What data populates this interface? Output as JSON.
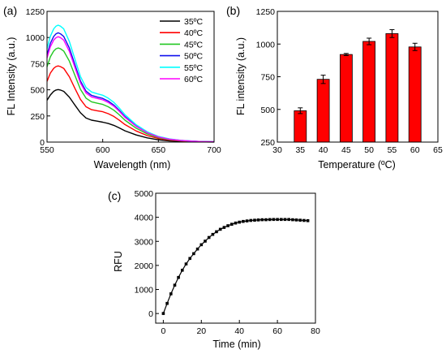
{
  "chart_data": [
    {
      "panel_label": "(a)",
      "type": "line",
      "xlabel": "Wavelength (nm)",
      "ylabel": "FL Intensity (a.u.)",
      "xlim": [
        550,
        700
      ],
      "ylim": [
        0,
        1250
      ],
      "xticks": [
        550,
        600,
        650,
        700
      ],
      "yticks": [
        0,
        250,
        500,
        750,
        1000,
        1250
      ],
      "ytick_labels": [
        "0",
        "250",
        "500",
        "750",
        "1000",
        "1250"
      ],
      "grid": false,
      "legend_position": "top-right",
      "x": [
        550,
        553,
        556,
        558,
        560,
        562,
        565,
        570,
        575,
        580,
        585,
        590,
        595,
        600,
        605,
        610,
        615,
        620,
        630,
        640,
        650,
        660,
        670,
        680,
        690,
        700
      ],
      "series": [
        {
          "name": "35ºC",
          "color": "#000000",
          "values": [
            400,
            450,
            485,
            498,
            502,
            498,
            485,
            430,
            355,
            280,
            230,
            210,
            200,
            190,
            178,
            160,
            135,
            108,
            68,
            40,
            22,
            12,
            7,
            4,
            2,
            1
          ]
        },
        {
          "name": "40ºC",
          "color": "#ff0000",
          "values": [
            580,
            660,
            705,
            722,
            728,
            722,
            705,
            625,
            515,
            408,
            338,
            310,
            300,
            290,
            272,
            245,
            208,
            168,
            106,
            62,
            34,
            19,
            11,
            6,
            3,
            2
          ]
        },
        {
          "name": "45ºC",
          "color": "#22c822",
          "values": [
            720,
            815,
            870,
            892,
            900,
            893,
            870,
            775,
            640,
            505,
            420,
            385,
            372,
            360,
            338,
            305,
            260,
            210,
            133,
            78,
            43,
            24,
            14,
            8,
            4,
            2
          ]
        },
        {
          "name": "50ºC",
          "color": "#1010ee",
          "values": [
            835,
            945,
            1010,
            1035,
            1045,
            1036,
            1010,
            900,
            742,
            585,
            487,
            447,
            432,
            418,
            392,
            354,
            302,
            244,
            155,
            91,
            50,
            28,
            16,
            9,
            5,
            3
          ]
        },
        {
          "name": "55ºC",
          "color": "#00ffff",
          "values": [
            895,
            1012,
            1082,
            1108,
            1118,
            1109,
            1082,
            963,
            795,
            627,
            522,
            479,
            463,
            448,
            420,
            380,
            324,
            262,
            166,
            98,
            54,
            30,
            17,
            10,
            5,
            3
          ]
        },
        {
          "name": "60ºC",
          "color": "#ff00ff",
          "values": [
            805,
            912,
            975,
            998,
            1008,
            999,
            975,
            868,
            716,
            565,
            470,
            432,
            418,
            404,
            379,
            343,
            293,
            237,
            151,
            89,
            49,
            27,
            16,
            9,
            5,
            3
          ]
        }
      ]
    },
    {
      "panel_label": "(b)",
      "type": "bar",
      "xlabel": "Temperature (ºC)",
      "ylabel": "FL intensity (a.u.)",
      "xlim": [
        30,
        65
      ],
      "ylim": [
        250,
        1250
      ],
      "xticks": [
        30,
        35,
        40,
        45,
        50,
        55,
        60,
        65
      ],
      "yticks": [
        250,
        500,
        750,
        1000,
        1250
      ],
      "ytick_labels": [
        "250",
        "500",
        "750",
        "1000",
        "1250"
      ],
      "grid": false,
      "bar_color": "#ff0000",
      "categories": [
        35,
        40,
        45,
        50,
        55,
        60
      ],
      "values": [
        490,
        730,
        920,
        1020,
        1080,
        978
      ],
      "errors": [
        22,
        32,
        8,
        25,
        30,
        28
      ]
    },
    {
      "panel_label": "(c)",
      "type": "line",
      "xlabel": "Time (min)",
      "ylabel": "RFU",
      "xlim": [
        -4,
        80
      ],
      "ylim": [
        -400,
        5000
      ],
      "xticks": [
        0,
        20,
        40,
        60,
        80
      ],
      "yticks": [
        0,
        1000,
        2000,
        3000,
        4000,
        5000
      ],
      "ytick_labels": [
        "0",
        "1000",
        "2000",
        "3000",
        "4000",
        "5000"
      ],
      "grid": false,
      "marker": "square",
      "x": [
        0,
        2,
        4,
        6,
        8,
        10,
        12,
        14,
        16,
        18,
        20,
        22,
        24,
        26,
        28,
        30,
        32,
        34,
        36,
        38,
        40,
        42,
        44,
        46,
        48,
        50,
        52,
        54,
        56,
        58,
        60,
        62,
        64,
        66,
        68,
        70,
        72,
        74,
        76
      ],
      "values": [
        0,
        420,
        820,
        1180,
        1500,
        1800,
        2060,
        2290,
        2490,
        2680,
        2860,
        3010,
        3160,
        3290,
        3400,
        3500,
        3580,
        3650,
        3710,
        3760,
        3800,
        3830,
        3850,
        3870,
        3880,
        3890,
        3900,
        3900,
        3905,
        3910,
        3910,
        3910,
        3910,
        3910,
        3900,
        3890,
        3880,
        3870,
        3860
      ]
    }
  ]
}
